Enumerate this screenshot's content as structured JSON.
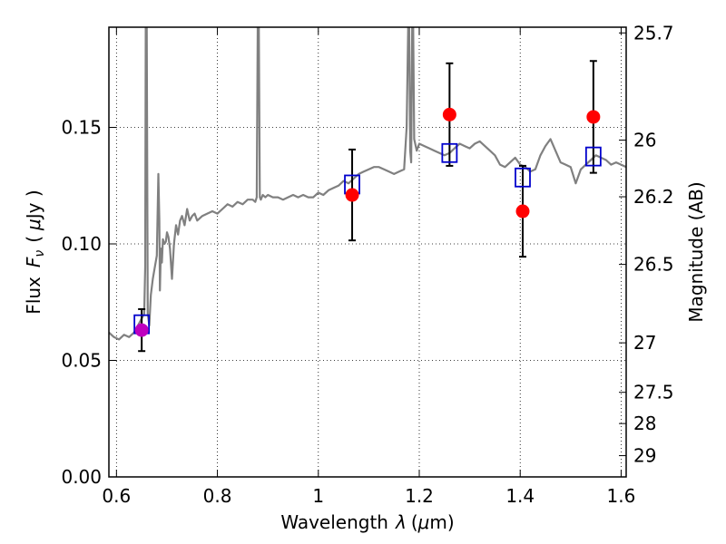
{
  "chart_data": {
    "type": "line",
    "xlabel_text": "Wavelength",
    "xlabel_symbol": "λ",
    "xlabel_unit_open": "(",
    "xlabel_unit_mu": "μ",
    "xlabel_unit_rest": "m)",
    "ylabel_text": "Flux",
    "ylabel_symbol_F": "F",
    "ylabel_symbol_sub": "ν",
    "ylabel_unit_open": "(",
    "ylabel_unit_mu": "μ",
    "ylabel_unit_rest": "Jy )",
    "y2label": "Magnitude (AB)",
    "xlim": [
      0.585,
      1.61
    ],
    "ylim": [
      0.0,
      0.193
    ],
    "x_ticks": [
      0.6,
      0.8,
      1.0,
      1.2,
      1.4,
      1.6
    ],
    "x_tick_labels": [
      "0.6",
      "0.8",
      "1",
      "1.2",
      "1.4",
      "1.6"
    ],
    "y_ticks": [
      0.0,
      0.05,
      0.1,
      0.15
    ],
    "y_tick_labels": [
      "0.00",
      "0.05",
      "0.10",
      "0.15"
    ],
    "mag_ticks": [
      {
        "label": "25.7",
        "mag": 25.7
      },
      {
        "label": "26",
        "mag": 26.0
      },
      {
        "label": "26.2",
        "mag": 26.2
      },
      {
        "label": "26.5",
        "mag": 26.5
      },
      {
        "label": "27",
        "mag": 27.0
      },
      {
        "label": "27.5",
        "mag": 27.5
      },
      {
        "label": "28",
        "mag": 28.0
      },
      {
        "label": "29",
        "mag": 29.0
      }
    ],
    "grid": true,
    "grid_style": "dotted",
    "colors": {
      "model": "#808080",
      "observed": "#ff0000",
      "observed_first": "#bf00bf",
      "synthetic": "#0000cc",
      "errorbar": "#000000"
    },
    "model_spectrum": {
      "x": [
        0.585,
        0.595,
        0.605,
        0.615,
        0.625,
        0.635,
        0.64,
        0.645,
        0.65,
        0.655,
        0.657,
        0.658,
        0.659,
        0.66,
        0.662,
        0.665,
        0.668,
        0.672,
        0.676,
        0.68,
        0.683,
        0.685,
        0.686,
        0.688,
        0.69,
        0.692,
        0.695,
        0.698,
        0.7,
        0.703,
        0.706,
        0.71,
        0.714,
        0.718,
        0.722,
        0.726,
        0.73,
        0.735,
        0.74,
        0.745,
        0.75,
        0.755,
        0.76,
        0.77,
        0.78,
        0.79,
        0.8,
        0.81,
        0.82,
        0.83,
        0.84,
        0.85,
        0.86,
        0.87,
        0.875,
        0.878,
        0.88,
        0.882,
        0.884,
        0.886,
        0.888,
        0.89,
        0.895,
        0.9,
        0.91,
        0.92,
        0.93,
        0.94,
        0.95,
        0.96,
        0.97,
        0.98,
        0.99,
        1.0,
        1.01,
        1.02,
        1.03,
        1.04,
        1.05,
        1.06,
        1.07,
        1.08,
        1.09,
        1.1,
        1.11,
        1.12,
        1.13,
        1.14,
        1.15,
        1.16,
        1.17,
        1.175,
        1.178,
        1.18,
        1.182,
        1.184,
        1.186,
        1.188,
        1.19,
        1.195,
        1.2,
        1.21,
        1.22,
        1.23,
        1.24,
        1.25,
        1.26,
        1.27,
        1.28,
        1.29,
        1.3,
        1.31,
        1.32,
        1.33,
        1.34,
        1.35,
        1.36,
        1.37,
        1.38,
        1.39,
        1.4,
        1.41,
        1.42,
        1.43,
        1.44,
        1.45,
        1.46,
        1.47,
        1.48,
        1.49,
        1.5,
        1.51,
        1.52,
        1.53,
        1.54,
        1.55,
        1.56,
        1.57,
        1.58,
        1.59,
        1.6,
        1.61
      ],
      "y": [
        0.062,
        0.06,
        0.059,
        0.061,
        0.06,
        0.062,
        0.064,
        0.066,
        0.068,
        0.07,
        0.09,
        0.193,
        0.193,
        0.193,
        0.07,
        0.065,
        0.078,
        0.085,
        0.09,
        0.095,
        0.13,
        0.11,
        0.08,
        0.098,
        0.092,
        0.102,
        0.1,
        0.101,
        0.105,
        0.103,
        0.098,
        0.085,
        0.1,
        0.108,
        0.104,
        0.11,
        0.112,
        0.108,
        0.115,
        0.11,
        0.112,
        0.113,
        0.11,
        0.112,
        0.113,
        0.114,
        0.113,
        0.115,
        0.117,
        0.116,
        0.118,
        0.117,
        0.119,
        0.119,
        0.118,
        0.12,
        0.193,
        0.193,
        0.12,
        0.119,
        0.12,
        0.121,
        0.12,
        0.121,
        0.12,
        0.12,
        0.119,
        0.12,
        0.121,
        0.12,
        0.121,
        0.12,
        0.12,
        0.122,
        0.121,
        0.123,
        0.124,
        0.125,
        0.127,
        0.126,
        0.128,
        0.13,
        0.131,
        0.132,
        0.133,
        0.133,
        0.132,
        0.131,
        0.13,
        0.131,
        0.132,
        0.15,
        0.193,
        0.193,
        0.14,
        0.135,
        0.193,
        0.193,
        0.145,
        0.14,
        0.143,
        0.142,
        0.141,
        0.14,
        0.139,
        0.138,
        0.139,
        0.141,
        0.143,
        0.142,
        0.141,
        0.143,
        0.144,
        0.142,
        0.14,
        0.138,
        0.134,
        0.133,
        0.135,
        0.137,
        0.134,
        0.133,
        0.131,
        0.132,
        0.138,
        0.142,
        0.145,
        0.14,
        0.135,
        0.134,
        0.133,
        0.126,
        0.132,
        0.134,
        0.136,
        0.138,
        0.137,
        0.136,
        0.134,
        0.135,
        0.134,
        0.133
      ]
    },
    "observed_points": [
      {
        "x": 0.65,
        "y": 0.063,
        "err": 0.009
      },
      {
        "x": 1.067,
        "y": 0.121,
        "err": 0.0195
      },
      {
        "x": 1.26,
        "y": 0.1555,
        "err": 0.022
      },
      {
        "x": 1.405,
        "y": 0.114,
        "err": 0.0195
      },
      {
        "x": 1.545,
        "y": 0.1545,
        "err": 0.024
      }
    ],
    "synthetic_points": [
      {
        "x": 0.65,
        "y": 0.0655
      },
      {
        "x": 1.067,
        "y": 0.1255
      },
      {
        "x": 1.26,
        "y": 0.139
      },
      {
        "x": 1.405,
        "y": 0.1285
      },
      {
        "x": 1.545,
        "y": 0.1375
      }
    ]
  }
}
